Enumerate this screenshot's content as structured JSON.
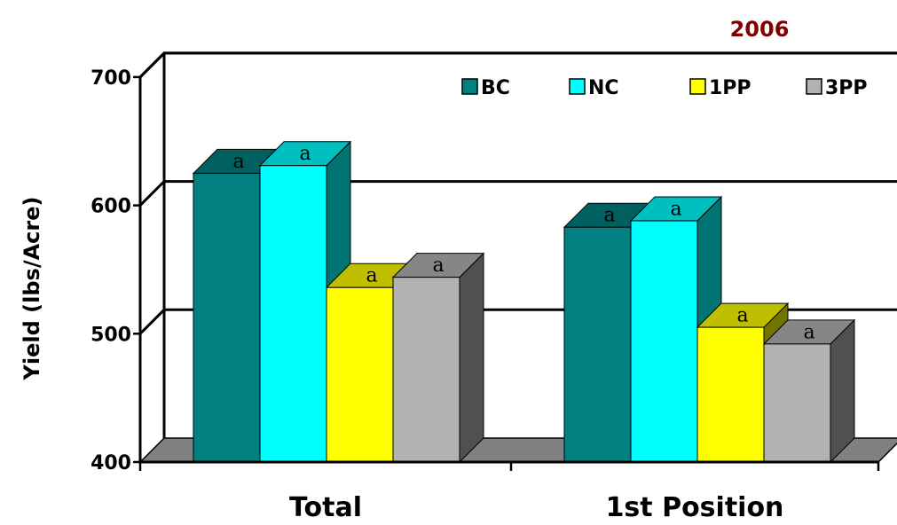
{
  "chart_data": {
    "type": "bar",
    "title": "2006",
    "ylabel": "Yield (lbs/Acre)",
    "xlabel": "",
    "ylim": [
      400,
      700
    ],
    "yticks": [
      400,
      500,
      600,
      700
    ],
    "grid": true,
    "legend_position": "top-right",
    "categories": [
      "Total",
      "1st Position"
    ],
    "series": [
      {
        "name": "BC",
        "values": [
          625,
          583
        ],
        "labels": [
          "a",
          "a"
        ],
        "color": "#008080"
      },
      {
        "name": "NC",
        "values": [
          631,
          588
        ],
        "labels": [
          "a",
          "a"
        ],
        "color": "#00FFFF"
      },
      {
        "name": "1PP",
        "values": [
          536,
          505
        ],
        "labels": [
          "a",
          "a"
        ],
        "color": "#FFFF00"
      },
      {
        "name": "3PP",
        "values": [
          544,
          492
        ],
        "labels": [
          "a",
          "a"
        ],
        "color": "#B2B2B2"
      }
    ]
  },
  "colors": {
    "title": "#7F0000",
    "floor": "#808080"
  }
}
